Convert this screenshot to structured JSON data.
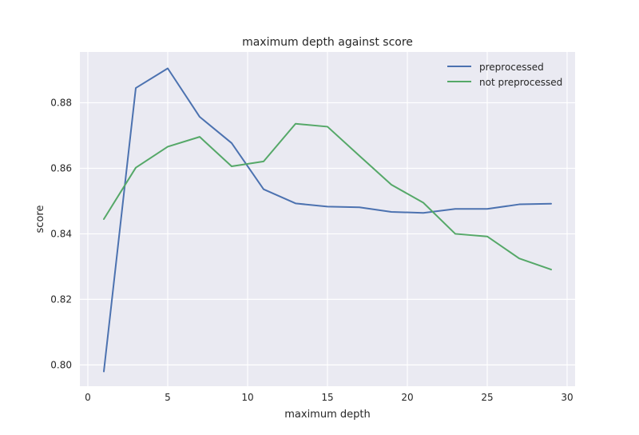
{
  "chart_data": {
    "type": "line",
    "title": "maximum depth against score",
    "xlabel": "maximum depth",
    "ylabel": "score",
    "xlim": [
      -0.5,
      30.5
    ],
    "ylim": [
      0.7935,
      0.8955
    ],
    "xticks": [
      0,
      5,
      10,
      15,
      20,
      25,
      30
    ],
    "yticks": [
      0.8,
      0.82,
      0.84,
      0.86,
      0.88
    ],
    "grid": true,
    "legend_position": "top-right",
    "x": [
      1,
      3,
      5,
      7,
      9,
      11,
      13,
      15,
      17,
      19,
      21,
      23,
      25,
      27,
      29
    ],
    "series": [
      {
        "name": "preprocessed",
        "color": "#4c72b0",
        "values": [
          0.798,
          0.8845,
          0.8905,
          0.8757,
          0.8677,
          0.8536,
          0.8493,
          0.8483,
          0.8481,
          0.8467,
          0.8464,
          0.8476,
          0.8476,
          0.849,
          0.8492
        ]
      },
      {
        "name": "not preprocessed",
        "color": "#55a868",
        "values": [
          0.8445,
          0.8602,
          0.8666,
          0.8696,
          0.8606,
          0.8621,
          0.8736,
          0.8727,
          0.8638,
          0.855,
          0.8495,
          0.84,
          0.8392,
          0.8325,
          0.8291
        ]
      }
    ]
  }
}
